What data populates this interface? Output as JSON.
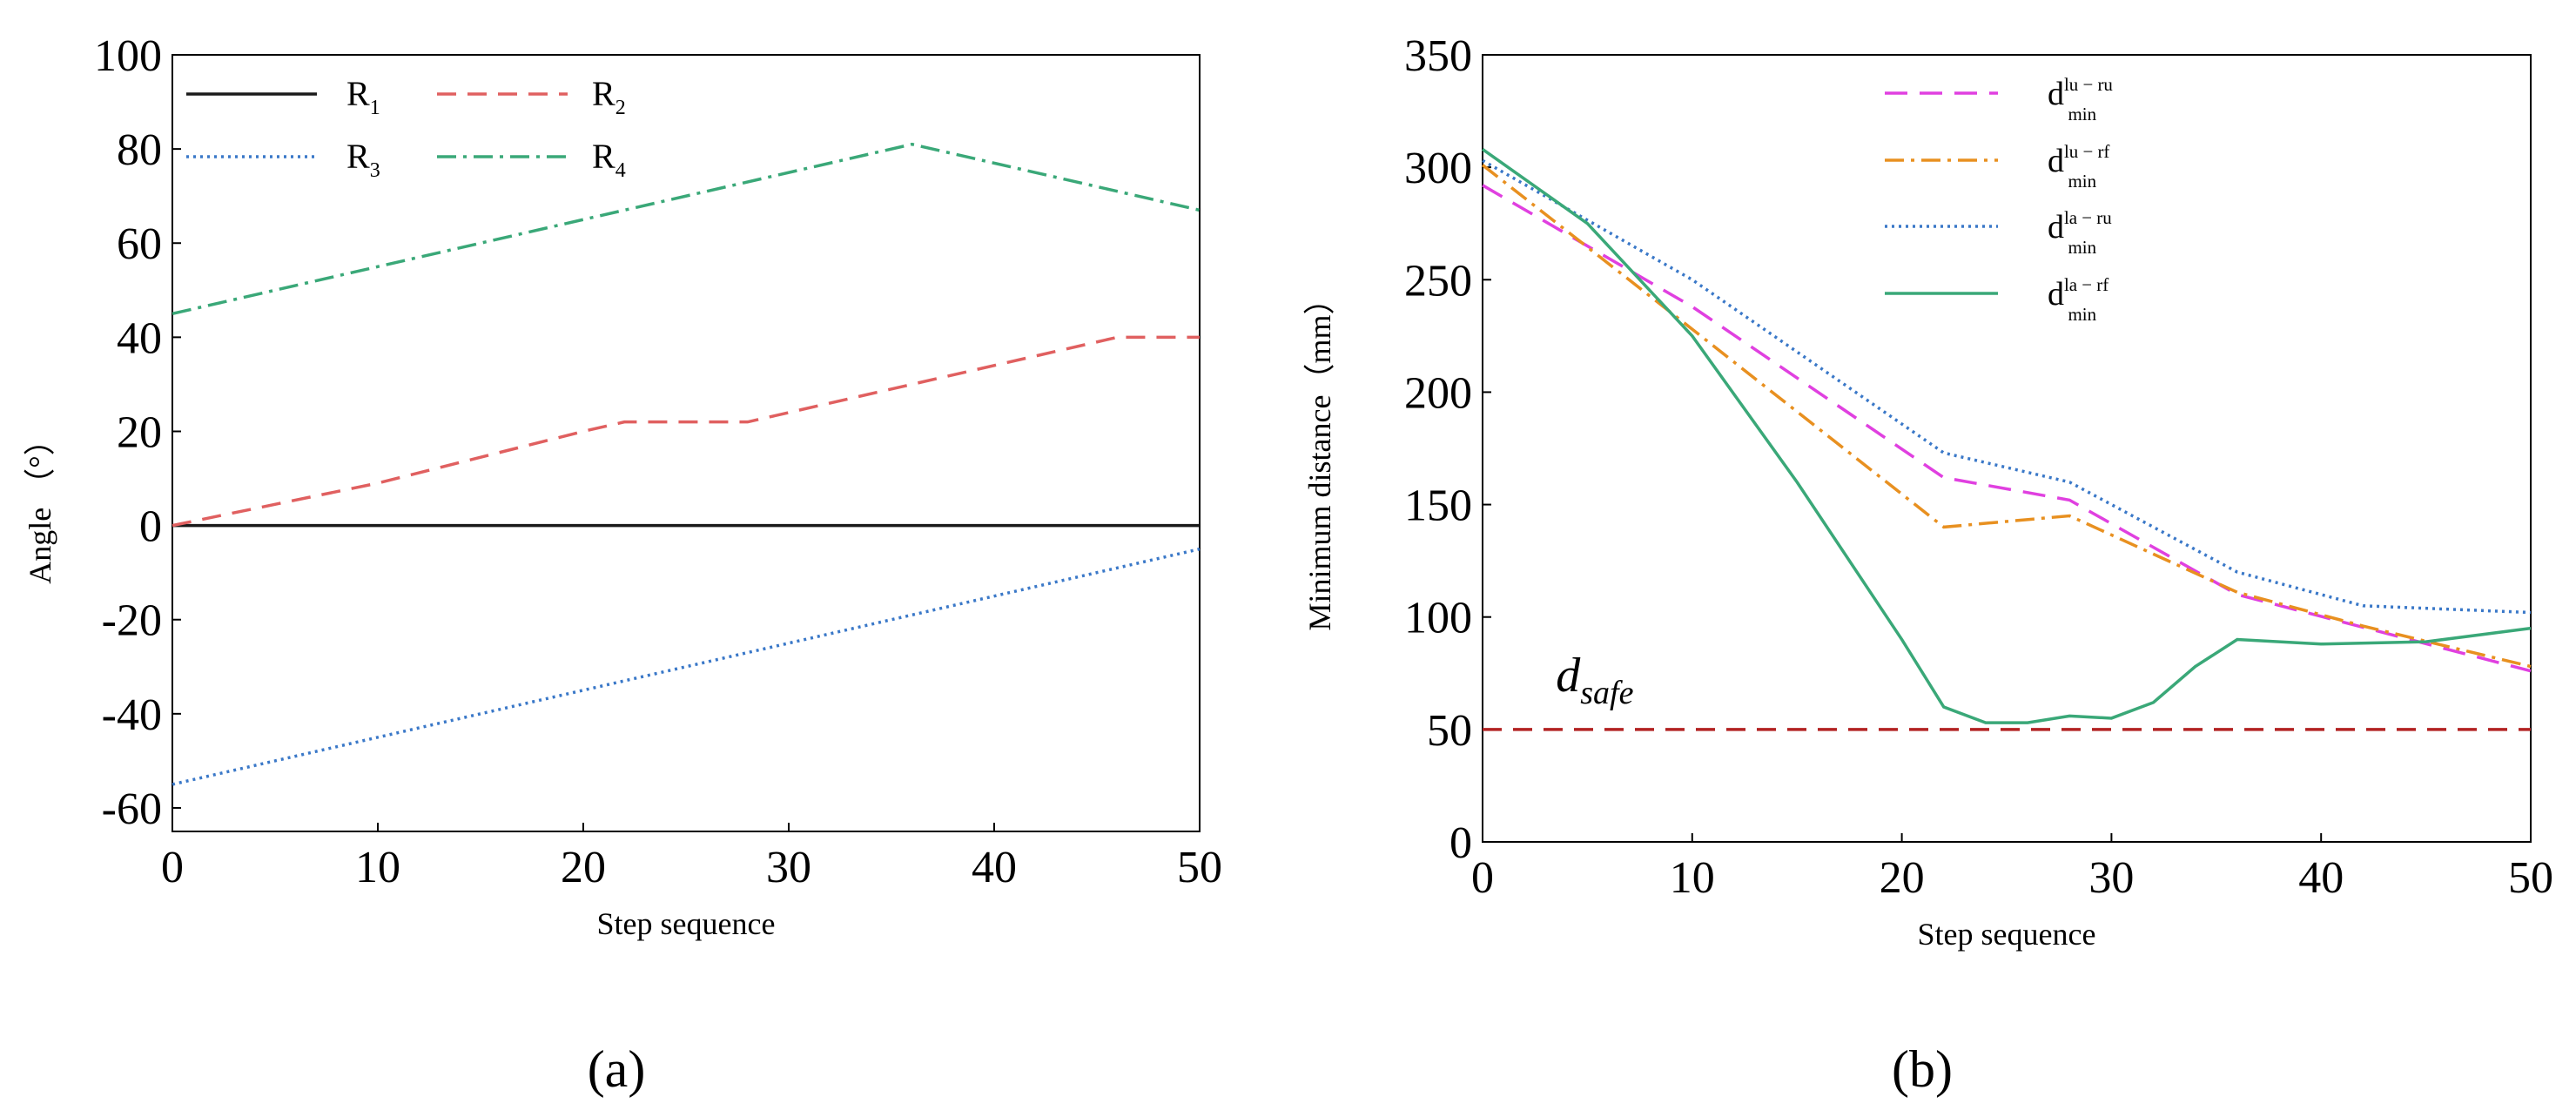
{
  "panels": [
    {
      "caption": "(a)",
      "chart_data": {
        "type": "line",
        "xlabel": "Step sequence",
        "ylabel": "Angle （°）",
        "xlim": [
          0,
          50
        ],
        "ylim": [
          -65,
          100
        ],
        "xticks": [
          "0",
          "10",
          "20",
          "30",
          "40",
          "50"
        ],
        "yticks": [
          "-60",
          "-40",
          "-20",
          "0",
          "20",
          "40",
          "60",
          "80",
          "100"
        ],
        "legend_position": "top-left",
        "series": [
          {
            "name": "R",
            "sub": "1",
            "color": "#1a1a1a",
            "dash": "",
            "x": [
              0,
              50
            ],
            "y": [
              0,
              0
            ]
          },
          {
            "name": "R",
            "sub": "2",
            "color": "#e06060",
            "dash": "22,13",
            "x": [
              0,
              10,
              20,
              22,
              28,
              46,
              50
            ],
            "y": [
              0,
              9,
              20,
              22,
              22,
              40,
              40
            ]
          },
          {
            "name": "R",
            "sub": "3",
            "color": "#3a78c8",
            "dash": "3,5",
            "x": [
              0,
              50
            ],
            "y": [
              -55,
              -5
            ]
          },
          {
            "name": "R",
            "sub": "4",
            "color": "#3aa878",
            "dash": "22,8,4,8",
            "x": [
              0,
              36,
              50
            ],
            "y": [
              45,
              81,
              67
            ]
          }
        ]
      }
    },
    {
      "caption": "(b)",
      "chart_data": {
        "type": "line",
        "xlabel": "Step sequence",
        "ylabel": "Minimum distance（mm）",
        "xlim": [
          0,
          50
        ],
        "ylim": [
          0,
          350
        ],
        "xticks": [
          "0",
          "10",
          "20",
          "30",
          "40",
          "50"
        ],
        "yticks": [
          "0",
          "50",
          "100",
          "150",
          "200",
          "250",
          "300",
          "350"
        ],
        "legend_position": "top-right",
        "annotation": {
          "text": "d",
          "sub": "safe",
          "x": 3.5,
          "y": 67
        },
        "series": [
          {
            "name": "d",
            "sub": "min",
            "sup": "lu − ru",
            "color": "#e040e0",
            "dash": "26,14",
            "x": [
              0,
              10,
              22,
              28,
              36,
              50
            ],
            "y": [
              292,
              238,
              162,
              152,
              110,
              76
            ]
          },
          {
            "name": "d",
            "sub": "min",
            "sup": "lu − rf",
            "color": "#e89020",
            "dash": "22,8,4,8",
            "x": [
              0,
              10,
              22,
              28,
              36,
              42,
              50
            ],
            "y": [
              301,
              228,
              140,
              145,
              111,
              96,
              78
            ]
          },
          {
            "name": "d",
            "sub": "min",
            "sup": "la − ru",
            "color": "#3a78c8",
            "dash": "3,5",
            "x": [
              0,
              10,
              22,
              28,
              36,
              42,
              50
            ],
            "y": [
              303,
              250,
              173,
              160,
              120,
              105,
              102
            ]
          },
          {
            "name": "d",
            "sub": "min",
            "sup": "la − rf",
            "color": "#3aa878",
            "dash": "",
            "x": [
              0,
              5,
              10,
              15,
              20,
              22,
              24,
              26,
              28,
              30,
              32,
              34,
              36,
              40,
              45,
              50
            ],
            "y": [
              308,
              275,
              225,
              160,
              90,
              60,
              53,
              53,
              56,
              55,
              62,
              78,
              90,
              88,
              89,
              95
            ]
          },
          {
            "name": "d",
            "sub": "safe",
            "color": "#b22222",
            "dash": "22,13",
            "legend": false,
            "x": [
              0,
              50
            ],
            "y": [
              50,
              50
            ]
          }
        ]
      }
    }
  ]
}
